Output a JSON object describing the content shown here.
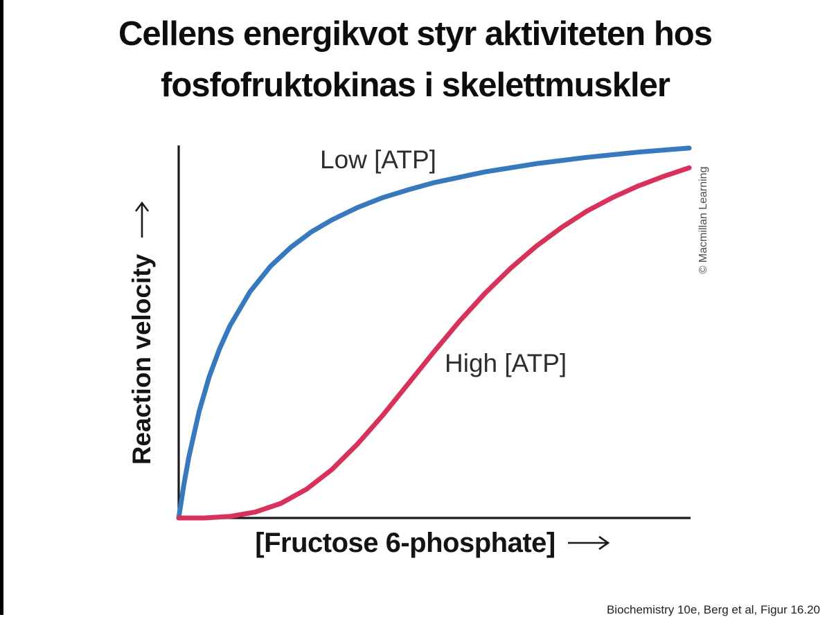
{
  "page": {
    "background": "#ffffff",
    "left_edge_bar_color": "#000000"
  },
  "header": {
    "title_lines": [
      "Cellens energikvot styr aktiviteten hos",
      "fosfofruktokinas i skelettmuskler"
    ]
  },
  "chart_data": {
    "type": "line",
    "title": "",
    "xlabel": "[Fructose 6-phosphate]",
    "ylabel": "Reaction velocity",
    "axis_arrow_glyph": "→",
    "axis_color": "#1a1a1a",
    "ticks_shown": false,
    "axis_units": "relative (unlabeled axes with direction arrows, values normalized 0–1)",
    "xlim": [
      0,
      1
    ],
    "ylim": [
      0,
      1
    ],
    "grid": false,
    "legend_position": "inline labels next to curves",
    "series": [
      {
        "name": "Low [ATP]",
        "color": "#3779BC",
        "curve_shape": "hyperbolic (Michaelis-Menten)",
        "x": [
          0,
          0.01,
          0.02,
          0.04,
          0.06,
          0.08,
          0.1,
          0.14,
          0.18,
          0.22,
          0.26,
          0.3,
          0.35,
          0.4,
          0.45,
          0.5,
          0.6,
          0.7,
          0.8,
          0.9,
          1.0
        ],
        "y": [
          0,
          0.089,
          0.164,
          0.286,
          0.38,
          0.454,
          0.515,
          0.608,
          0.676,
          0.727,
          0.768,
          0.8,
          0.833,
          0.86,
          0.881,
          0.9,
          0.929,
          0.951,
          0.968,
          0.982,
          0.993
        ]
      },
      {
        "name": "High [ATP]",
        "color": "#D8325B",
        "curve_shape": "sigmoidal (cooperative)",
        "x": [
          0,
          0.05,
          0.1,
          0.15,
          0.2,
          0.25,
          0.3,
          0.35,
          0.4,
          0.45,
          0.5,
          0.55,
          0.6,
          0.65,
          0.7,
          0.75,
          0.8,
          0.85,
          0.9,
          0.95,
          1.0
        ],
        "y": [
          0,
          0.0,
          0.004,
          0.016,
          0.039,
          0.077,
          0.13,
          0.198,
          0.276,
          0.361,
          0.446,
          0.528,
          0.603,
          0.67,
          0.729,
          0.78,
          0.824,
          0.86,
          0.891,
          0.917,
          0.94
        ]
      }
    ]
  },
  "credits": {
    "copyright_vertical": "© Macmillan Learning",
    "attribution_bottom": "Biochemistry 10e, Berg et al, Figur 16.20"
  }
}
